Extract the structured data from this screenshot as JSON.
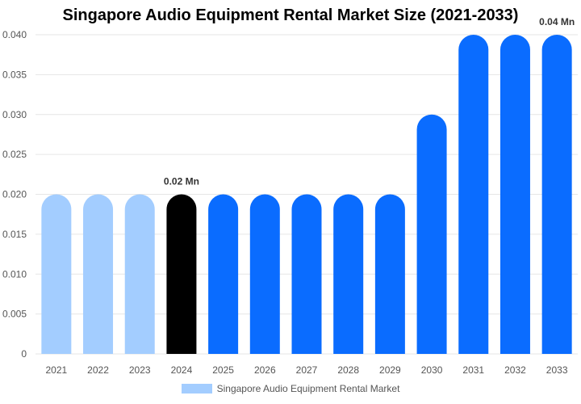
{
  "chart_data": {
    "type": "bar",
    "title": "Singapore Audio Equipment Rental Market Size (2021-2033)",
    "categories": [
      "2021",
      "2022",
      "2023",
      "2024",
      "2025",
      "2026",
      "2027",
      "2028",
      "2029",
      "2030",
      "2031",
      "2032",
      "2033"
    ],
    "series": [
      {
        "name": "Singapore Audio Equipment Rental Market",
        "values": [
          0.02,
          0.02,
          0.02,
          0.02,
          0.02,
          0.02,
          0.02,
          0.02,
          0.02,
          0.03,
          0.04,
          0.04,
          0.04
        ]
      }
    ],
    "bar_colors": [
      "#a3cdff",
      "#a3cdff",
      "#a3cdff",
      "#000000",
      "#0a6cff",
      "#0a6cff",
      "#0a6cff",
      "#0a6cff",
      "#0a6cff",
      "#0a6cff",
      "#0a6cff",
      "#0a6cff",
      "#0a6cff"
    ],
    "legend_color": "#a3cdff",
    "ylim": [
      0,
      0.04
    ],
    "yticks": [
      "0",
      "0.005",
      "0.010",
      "0.015",
      "0.020",
      "0.025",
      "0.030",
      "0.035",
      "0.040"
    ],
    "annotations": [
      {
        "category": "2024",
        "text": "0.02 Mn"
      },
      {
        "category": "2033",
        "text": "0.04 Mn"
      }
    ],
    "grid": "horizontal",
    "legend_position": "bottom"
  }
}
